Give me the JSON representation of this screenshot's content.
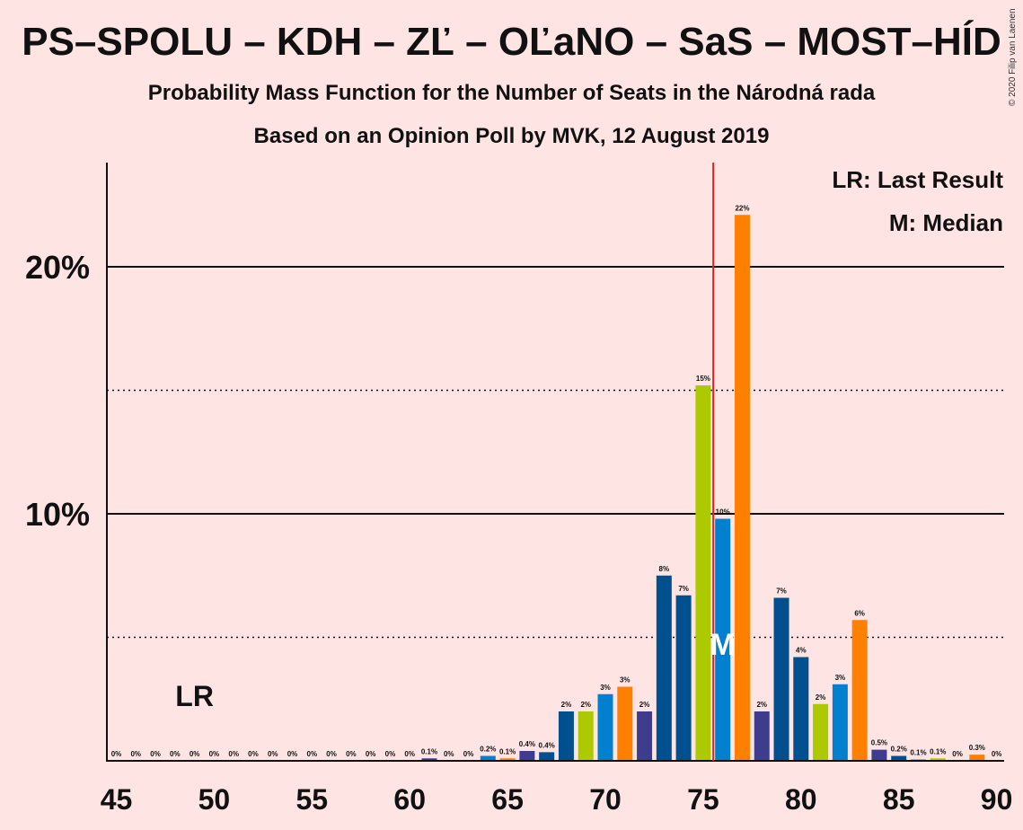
{
  "title": "PS–SPOLU – KDH – ZĽ – OĽaNO – SaS – MOST–HÍD",
  "subtitle1": "Probability Mass Function for the Number of Seats in the Národná rada",
  "subtitle2": "Based on an Opinion Poll by MVK, 12 August 2019",
  "copyright": "© 2020 Filip van Laenen",
  "legend": {
    "last_result": "LR: Last Result",
    "median": "M: Median"
  },
  "markers": {
    "last_result_label": "LR",
    "last_result_seat": 49,
    "median_label": "M",
    "median_seat": 76,
    "majority_seat": 76
  },
  "colors": {
    "background": "#FFE4E4",
    "majority_line": "#E0201B",
    "palette": [
      "#00508F",
      "#ADC900",
      "#0080CF",
      "#FF7F00",
      "#3E3C8C",
      "#00508F"
    ]
  },
  "chart_data": {
    "type": "bar",
    "xlim": [
      45,
      90
    ],
    "ylim": [
      0,
      24
    ],
    "yticks": [
      10,
      20
    ],
    "ytick_labels": [
      "10%",
      "20%"
    ],
    "xticks": [
      45,
      50,
      55,
      60,
      65,
      70,
      75,
      80,
      85,
      90
    ],
    "xtick_labels": [
      "45",
      "50",
      "55",
      "60",
      "65",
      "70",
      "75",
      "80",
      "85",
      "90"
    ],
    "dotted_gridlines": [
      5,
      15
    ],
    "bars": [
      {
        "seat": 45,
        "value": 0,
        "label": "0%",
        "color": "#3E3C8C"
      },
      {
        "seat": 46,
        "value": 0,
        "label": "0%",
        "color": "#3E3C8C"
      },
      {
        "seat": 47,
        "value": 0,
        "label": "0%",
        "color": "#3E3C8C"
      },
      {
        "seat": 48,
        "value": 0,
        "label": "0%",
        "color": "#3E3C8C"
      },
      {
        "seat": 49,
        "value": 0,
        "label": "0%",
        "color": "#3E3C8C"
      },
      {
        "seat": 50,
        "value": 0,
        "label": "0%",
        "color": "#3E3C8C"
      },
      {
        "seat": 51,
        "value": 0,
        "label": "0%",
        "color": "#3E3C8C"
      },
      {
        "seat": 52,
        "value": 0,
        "label": "0%",
        "color": "#3E3C8C"
      },
      {
        "seat": 53,
        "value": 0,
        "label": "0%",
        "color": "#3E3C8C"
      },
      {
        "seat": 54,
        "value": 0,
        "label": "0%",
        "color": "#3E3C8C"
      },
      {
        "seat": 55,
        "value": 0,
        "label": "0%",
        "color": "#3E3C8C"
      },
      {
        "seat": 56,
        "value": 0,
        "label": "0%",
        "color": "#3E3C8C"
      },
      {
        "seat": 57,
        "value": 0,
        "label": "0%",
        "color": "#3E3C8C"
      },
      {
        "seat": 58,
        "value": 0,
        "label": "0%",
        "color": "#3E3C8C"
      },
      {
        "seat": 59,
        "value": 0,
        "label": "0%",
        "color": "#3E3C8C"
      },
      {
        "seat": 60,
        "value": 0,
        "label": "0%",
        "color": "#3E3C8C"
      },
      {
        "seat": 61,
        "value": 0.1,
        "label": "0.1%",
        "color": "#3E3C8C"
      },
      {
        "seat": 62,
        "value": 0,
        "label": "0%",
        "color": "#3E3C8C"
      },
      {
        "seat": 63,
        "value": 0,
        "label": "0%",
        "color": "#3E3C8C"
      },
      {
        "seat": 64,
        "value": 0.2,
        "label": "0.2%",
        "color": "#0080CF"
      },
      {
        "seat": 65,
        "value": 0.1,
        "label": "0.1%",
        "color": "#FF7F00"
      },
      {
        "seat": 66,
        "value": 0.4,
        "label": "0.4%",
        "color": "#3E3C8C"
      },
      {
        "seat": 67,
        "value": 0.35,
        "label": "0.4%",
        "color": "#00508F"
      },
      {
        "seat": 68,
        "value": 2.0,
        "label": "2%",
        "color": "#00508F"
      },
      {
        "seat": 69,
        "value": 2.0,
        "label": "2%",
        "color": "#ADC900"
      },
      {
        "seat": 70,
        "value": 2.7,
        "label": "3%",
        "color": "#0080CF"
      },
      {
        "seat": 71,
        "value": 3.0,
        "label": "3%",
        "color": "#FF7F00"
      },
      {
        "seat": 72,
        "value": 2.0,
        "label": "2%",
        "color": "#3E3C8C"
      },
      {
        "seat": 73,
        "value": 7.5,
        "label": "8%",
        "color": "#00508F"
      },
      {
        "seat": 74,
        "value": 6.7,
        "label": "7%",
        "color": "#00508F"
      },
      {
        "seat": 75,
        "value": 15.2,
        "label": "15%",
        "color": "#ADC900"
      },
      {
        "seat": 76,
        "value": 9.8,
        "label": "10%",
        "color": "#0080CF"
      },
      {
        "seat": 77,
        "value": 22.1,
        "label": "22%",
        "color": "#FF7F00"
      },
      {
        "seat": 78,
        "value": 2.0,
        "label": "2%",
        "color": "#3E3C8C"
      },
      {
        "seat": 79,
        "value": 6.6,
        "label": "7%",
        "color": "#00508F"
      },
      {
        "seat": 80,
        "value": 4.2,
        "label": "4%",
        "color": "#00508F"
      },
      {
        "seat": 81,
        "value": 2.3,
        "label": "2%",
        "color": "#ADC900"
      },
      {
        "seat": 82,
        "value": 3.1,
        "label": "3%",
        "color": "#0080CF"
      },
      {
        "seat": 83,
        "value": 5.7,
        "label": "6%",
        "color": "#FF7F00"
      },
      {
        "seat": 84,
        "value": 0.45,
        "label": "0.5%",
        "color": "#3E3C8C"
      },
      {
        "seat": 85,
        "value": 0.2,
        "label": "0.2%",
        "color": "#00508F"
      },
      {
        "seat": 86,
        "value": 0.05,
        "label": "0.1%",
        "color": "#00508F"
      },
      {
        "seat": 87,
        "value": 0.1,
        "label": "0.1%",
        "color": "#ADC900"
      },
      {
        "seat": 88,
        "value": 0,
        "label": "0%",
        "color": "#0080CF"
      },
      {
        "seat": 89,
        "value": 0.25,
        "label": "0.3%",
        "color": "#FF7F00"
      },
      {
        "seat": 90,
        "value": 0,
        "label": "0%",
        "color": "#3E3C8C"
      }
    ]
  }
}
